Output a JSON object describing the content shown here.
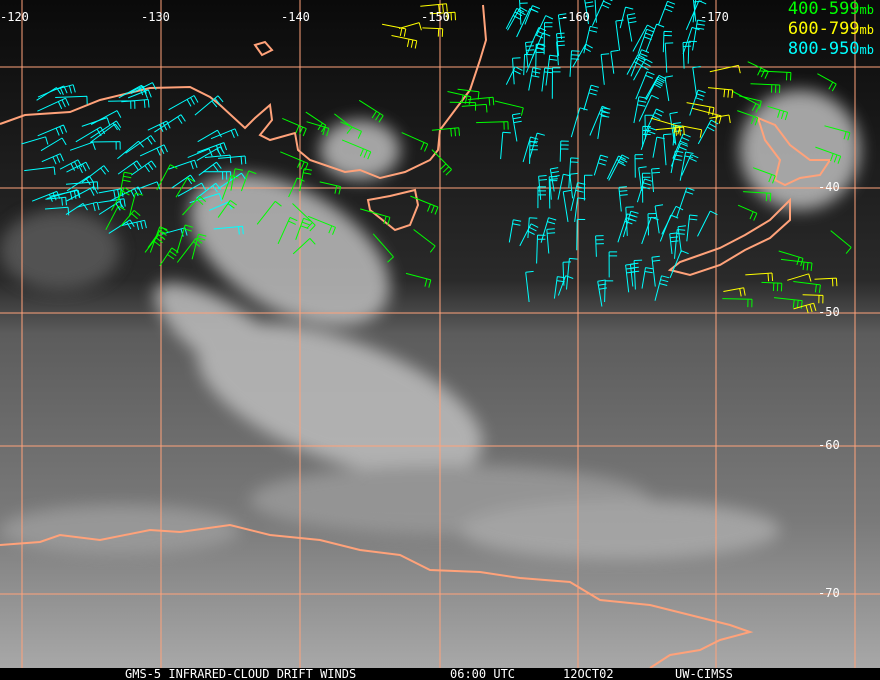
{
  "title_bar": {
    "satellite": "GMS-5 INFRARED-CLOUD DRIFT WINDS",
    "time": "06:00 UTC",
    "date": "12OCT02",
    "source": "UW-CIMSS"
  },
  "legend": [
    {
      "label": "400-599",
      "unit": "mb",
      "color": "#00ff00"
    },
    {
      "label": "600-799",
      "unit": "mb",
      "color": "#ffff00"
    },
    {
      "label": "800-950",
      "unit": "mb",
      "color": "#00ffff"
    }
  ],
  "longitude_labels": [
    "-120",
    "-130",
    "-140",
    "-150",
    "-160",
    "-170"
  ],
  "latitude_labels": [
    "-40",
    "-50",
    "-60",
    "-70"
  ],
  "colors": {
    "grid": "#ffa27a",
    "coast": "#ffa27a",
    "background": "#000000"
  }
}
